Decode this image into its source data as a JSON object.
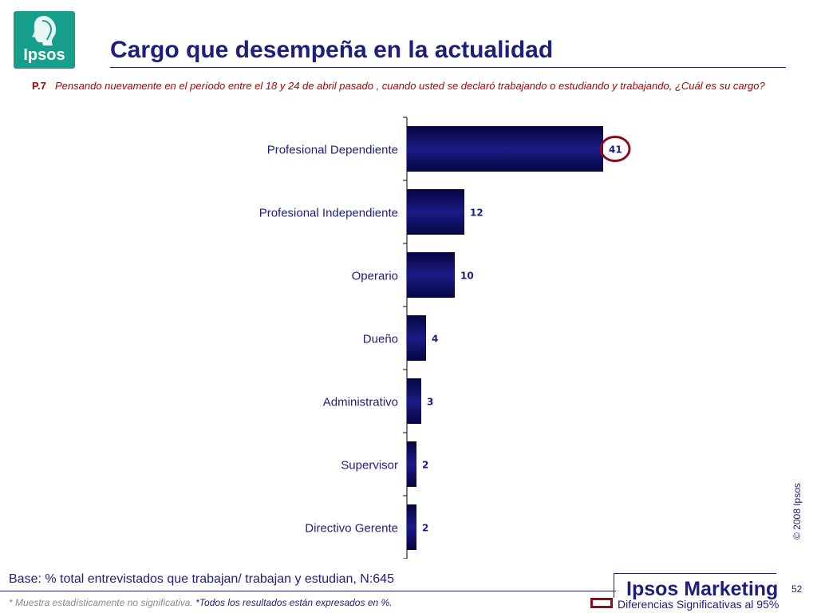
{
  "brand": {
    "logo_text": "Ipsos",
    "marketing": "Ipsos Marketing",
    "copyright": "© 2008 Ipsos",
    "color": "#16a08c"
  },
  "header": {
    "title": "Cargo que desempeña en la actualidad"
  },
  "question": {
    "number": "P.7",
    "text": "Pensando nuevamente en el período entre el 18 y 24 de abril pasado , cuando usted se declaró trabajando o estudiando y trabajando, ¿Cuál es su cargo?"
  },
  "chart_data": {
    "type": "bar",
    "orientation": "horizontal",
    "categories": [
      "Profesional Dependiente",
      "Profesional Independiente",
      "Operario",
      "Dueño",
      "Administrativo",
      "Supervisor",
      "Directivo Gerente"
    ],
    "values": [
      41,
      12,
      10,
      4,
      3,
      2,
      2
    ],
    "data_labels": [
      "41",
      "12",
      "10",
      "4",
      "3",
      "2",
      "2"
    ],
    "highlighted": [
      "Profesional Dependiente"
    ],
    "xlim": [
      0,
      45
    ],
    "bar_color": "#0d0d6b",
    "highlight_color": "#8b0d1e"
  },
  "footer": {
    "base": "Base: % total entrevistados que trabajan/ trabajan y estudian, N:645",
    "note_sample": "* Muestra estadísticamente no significativa.",
    "note_percent": "*Todos los resultados están expresados en %.",
    "legend": "Diferencias Significativas al 95%",
    "page": "52"
  }
}
